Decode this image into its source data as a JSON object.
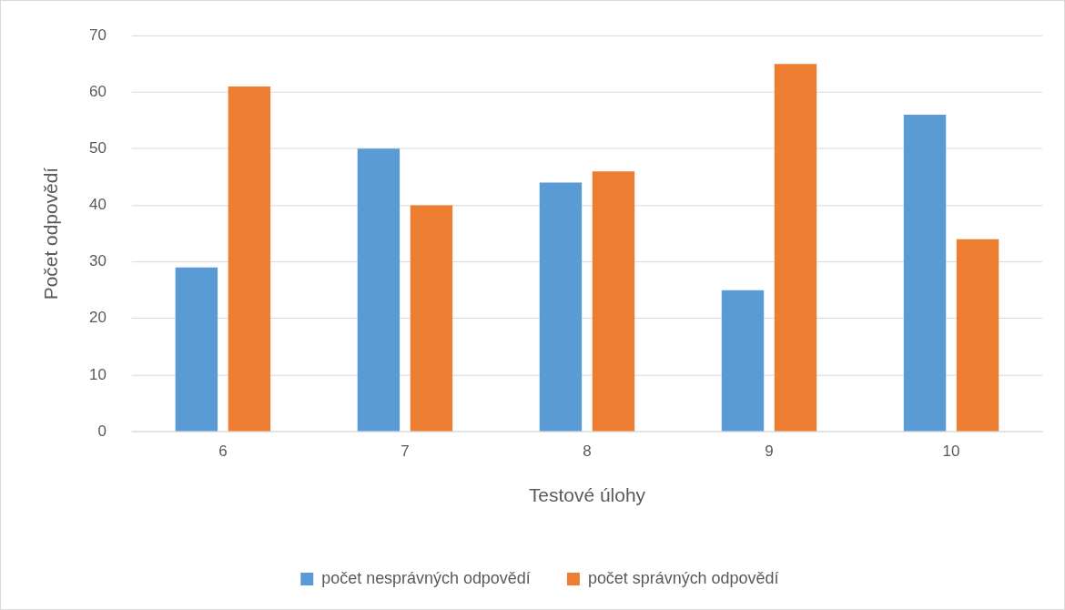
{
  "chart_data": {
    "type": "bar",
    "xlabel": "Testové úlohy",
    "ylabel": "Počet odpovědí",
    "categories": [
      "6",
      "7",
      "8",
      "9",
      "10"
    ],
    "series": [
      {
        "name": "počet nesprávných odpovědí",
        "color": "#5b9bd5",
        "values": [
          29,
          50,
          44,
          25,
          56
        ]
      },
      {
        "name": "počet správných odpovědí",
        "color": "#ed7d31",
        "values": [
          61,
          40,
          46,
          65,
          34
        ]
      }
    ],
    "ylim": [
      0,
      70
    ],
    "yticks": [
      0,
      10,
      20,
      30,
      40,
      50,
      60,
      70
    ],
    "grid": "y",
    "legend": "bottom"
  }
}
